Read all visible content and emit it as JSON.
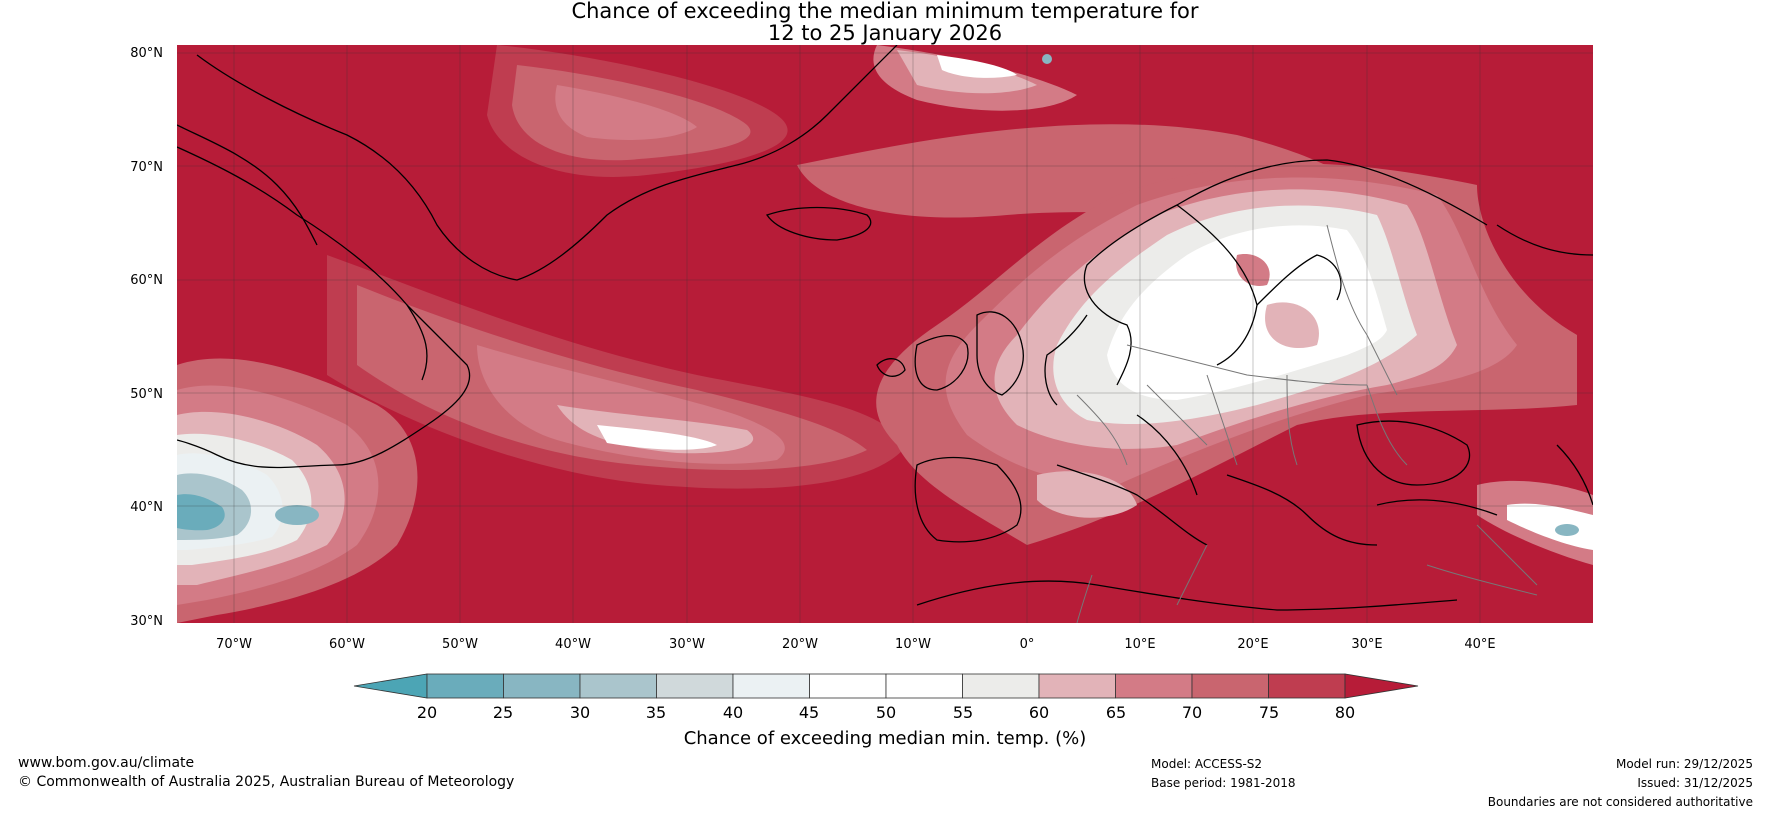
{
  "title": {
    "line1": "Chance of exceeding the median minimum temperature for",
    "line2": "12 to 25 January 2026"
  },
  "map": {
    "lat_labels": [
      "80°N",
      "70°N",
      "60°N",
      "50°N",
      "40°N",
      "30°N"
    ],
    "lon_labels": [
      "70°W",
      "60°W",
      "50°W",
      "40°W",
      "30°W",
      "20°W",
      "10°W",
      "0°",
      "10°E",
      "20°E",
      "30°E",
      "40°E"
    ],
    "lat_range": [
      30,
      81
    ],
    "lon_range": [
      -75,
      50
    ]
  },
  "legend": {
    "label": "Chance of exceeding median min. temp. (%)",
    "ticks": [
      "20",
      "25",
      "30",
      "35",
      "40",
      "45",
      "50",
      "55",
      "60",
      "65",
      "70",
      "75",
      "80"
    ],
    "colors": [
      "#4ca5b5",
      "#6aacbb",
      "#88b6c2",
      "#aac5cc",
      "#d0d9db",
      "#ebf1f3",
      "#ffffff",
      "#ffffff",
      "#ececea",
      "#e2b3b8",
      "#d37b86",
      "#c9656f",
      "#bf3d50",
      "#b71c38"
    ]
  },
  "footer": {
    "url": "www.bom.gov.au/climate",
    "copyright": "© Commonwealth of Australia 2025, Australian Bureau of Meteorology",
    "model": "Model: ACCESS-S2",
    "base_period": "Base period: 1981-2018",
    "model_run": "Model run: 29/12/2025",
    "issued": "Issued: 31/12/2025",
    "boundaries": "Boundaries are not considered authoritative"
  }
}
